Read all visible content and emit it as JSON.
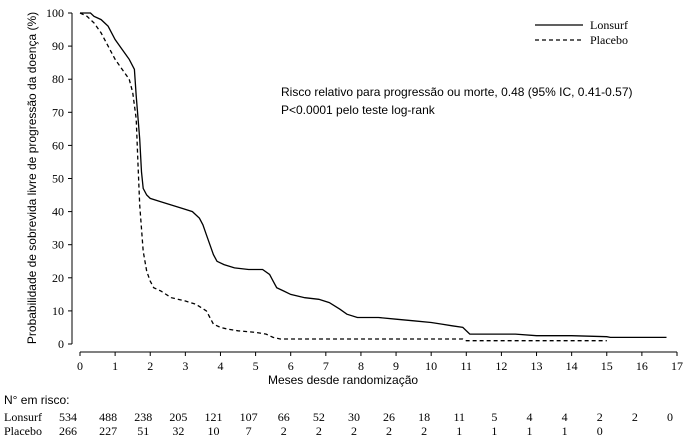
{
  "chart_data": {
    "type": "line",
    "ylabel": "Probabilidade de sobrevida livre de progressão da doença (%)",
    "xlabel": "Meses desde randomização",
    "xlim": [
      0,
      17
    ],
    "ylim": [
      0,
      100
    ],
    "x_ticks": [
      "0",
      "1",
      "2",
      "3",
      "4",
      "5",
      "6",
      "7",
      "8",
      "9",
      "10",
      "11",
      "12",
      "13",
      "14",
      "15",
      "16",
      "17"
    ],
    "y_ticks": [
      "0",
      "10",
      "20",
      "30",
      "40",
      "50",
      "60",
      "70",
      "80",
      "90",
      "100"
    ],
    "annotation_line1": "Risco relativo para progressão ou morte, 0.48 (95% IC, 0.41-0.57)",
    "annotation_line2": "P<0.0001 pelo teste log-rank",
    "legend": "top-right",
    "series": [
      {
        "name": "Lonsurf",
        "style": "solid",
        "color": "#000000",
        "points": [
          [
            0,
            100
          ],
          [
            0.3,
            100
          ],
          [
            0.4,
            99
          ],
          [
            0.6,
            98
          ],
          [
            0.8,
            96
          ],
          [
            1.0,
            92
          ],
          [
            1.2,
            89
          ],
          [
            1.4,
            86
          ],
          [
            1.55,
            83
          ],
          [
            1.6,
            75
          ],
          [
            1.7,
            62
          ],
          [
            1.75,
            52
          ],
          [
            1.8,
            47
          ],
          [
            1.9,
            45
          ],
          [
            2.0,
            44
          ],
          [
            2.3,
            43
          ],
          [
            2.6,
            42
          ],
          [
            2.9,
            41
          ],
          [
            3.2,
            40
          ],
          [
            3.4,
            38
          ],
          [
            3.5,
            36
          ],
          [
            3.6,
            33
          ],
          [
            3.7,
            30
          ],
          [
            3.8,
            27
          ],
          [
            3.9,
            25
          ],
          [
            4.1,
            24
          ],
          [
            4.4,
            23
          ],
          [
            4.8,
            22.5
          ],
          [
            5.2,
            22.5
          ],
          [
            5.4,
            21
          ],
          [
            5.5,
            19
          ],
          [
            5.6,
            17
          ],
          [
            5.8,
            16
          ],
          [
            6.0,
            15
          ],
          [
            6.4,
            14
          ],
          [
            6.8,
            13.5
          ],
          [
            7.1,
            12.5
          ],
          [
            7.4,
            10.5
          ],
          [
            7.6,
            9
          ],
          [
            7.9,
            8
          ],
          [
            8.5,
            8
          ],
          [
            9.0,
            7.5
          ],
          [
            9.5,
            7
          ],
          [
            10.0,
            6.5
          ],
          [
            10.3,
            6
          ],
          [
            10.6,
            5.5
          ],
          [
            10.9,
            5
          ],
          [
            11.1,
            3
          ],
          [
            11.5,
            3
          ],
          [
            12.4,
            3
          ],
          [
            13.0,
            2.5
          ],
          [
            14.0,
            2.5
          ],
          [
            15.0,
            2.2
          ],
          [
            15.1,
            2
          ],
          [
            16.0,
            2
          ],
          [
            16.7,
            2
          ]
        ]
      },
      {
        "name": "Placebo",
        "style": "dashed",
        "color": "#000000",
        "points": [
          [
            0,
            100
          ],
          [
            0.2,
            99
          ],
          [
            0.4,
            97
          ],
          [
            0.6,
            94
          ],
          [
            0.8,
            90
          ],
          [
            1.0,
            86
          ],
          [
            1.2,
            83
          ],
          [
            1.4,
            80
          ],
          [
            1.5,
            76
          ],
          [
            1.6,
            68
          ],
          [
            1.65,
            55
          ],
          [
            1.7,
            42
          ],
          [
            1.8,
            28
          ],
          [
            1.9,
            22
          ],
          [
            2.0,
            19
          ],
          [
            2.1,
            17
          ],
          [
            2.3,
            16
          ],
          [
            2.6,
            14
          ],
          [
            3.0,
            13
          ],
          [
            3.3,
            12
          ],
          [
            3.6,
            10
          ],
          [
            3.8,
            6
          ],
          [
            4.0,
            5
          ],
          [
            4.2,
            4.5
          ],
          [
            4.5,
            4
          ],
          [
            5.0,
            3.5
          ],
          [
            5.3,
            3
          ],
          [
            5.5,
            2
          ],
          [
            5.7,
            1.5
          ],
          [
            6.0,
            1.5
          ],
          [
            10.0,
            1.5
          ],
          [
            10.9,
            1.5
          ],
          [
            11.0,
            1
          ],
          [
            15.0,
            1
          ]
        ]
      }
    ]
  },
  "risk_table": {
    "title": "N° em risco:",
    "rows": [
      {
        "label": "Lonsurf",
        "values": [
          "534",
          "488",
          "238",
          "205",
          "121",
          "107",
          "66",
          "52",
          "30",
          "26",
          "18",
          "11",
          "5",
          "4",
          "4",
          "2",
          "2",
          "0"
        ]
      },
      {
        "label": "Placebo",
        "values": [
          "266",
          "227",
          "51",
          "32",
          "10",
          "7",
          "2",
          "2",
          "2",
          "2",
          "2",
          "1",
          "1",
          "1",
          "1",
          "0",
          "",
          ""
        ]
      }
    ]
  }
}
